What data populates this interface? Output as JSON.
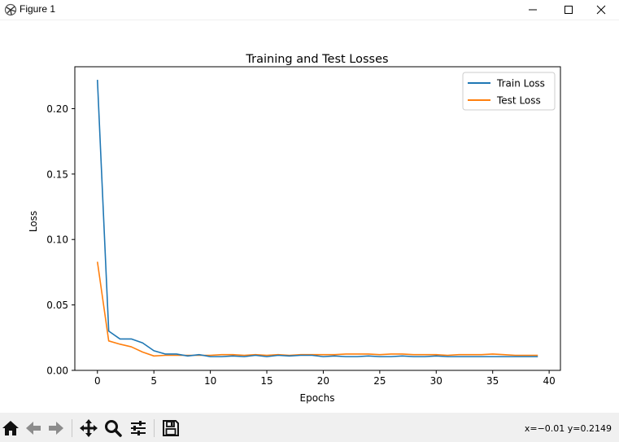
{
  "window": {
    "title": "Figure 1",
    "icons": [
      "matplotlib-icon",
      "minimize-icon",
      "maximize-icon",
      "close-icon"
    ]
  },
  "toolbar": {
    "icons": [
      "home-icon",
      "back-arrow-icon",
      "forward-arrow-icon",
      "pan-icon",
      "zoom-icon",
      "configure-subplots-icon",
      "save-icon"
    ],
    "coords": "x=−0.01 y=0.2149"
  },
  "colors": {
    "train": "#1f77b4",
    "test": "#ff7f0e"
  },
  "chart_data": {
    "type": "line",
    "title": "Training and Test Losses",
    "xlabel": "Epochs",
    "ylabel": "Loss",
    "xlim": [
      -2,
      41
    ],
    "ylim": [
      0,
      0.232
    ],
    "xticks": [
      0,
      5,
      10,
      15,
      20,
      25,
      30,
      35,
      40
    ],
    "xtick_labels": [
      "0",
      "5",
      "10",
      "15",
      "20",
      "25",
      "30",
      "35",
      "40"
    ],
    "yticks": [
      0.0,
      0.05,
      0.1,
      0.15,
      0.2
    ],
    "ytick_labels": [
      "0.00",
      "0.05",
      "0.10",
      "0.15",
      "0.20"
    ],
    "grid": false,
    "legend_position": "top-right",
    "x": [
      0,
      1,
      2,
      3,
      4,
      5,
      6,
      7,
      8,
      9,
      10,
      11,
      12,
      13,
      14,
      15,
      16,
      17,
      18,
      19,
      20,
      21,
      22,
      23,
      24,
      25,
      26,
      27,
      28,
      29,
      30,
      31,
      32,
      33,
      34,
      35,
      36,
      37,
      38,
      39
    ],
    "series": [
      {
        "name": "Train Loss",
        "values": [
          0.222,
          0.03,
          0.024,
          0.024,
          0.021,
          0.015,
          0.0125,
          0.0125,
          0.011,
          0.012,
          0.0105,
          0.0105,
          0.011,
          0.0105,
          0.0115,
          0.0105,
          0.0115,
          0.011,
          0.0115,
          0.0115,
          0.0105,
          0.011,
          0.0105,
          0.0105,
          0.011,
          0.0105,
          0.0105,
          0.011,
          0.0105,
          0.0105,
          0.011,
          0.0105,
          0.0105,
          0.0105,
          0.0105,
          0.0105,
          0.0105,
          0.0105,
          0.0105,
          0.0105
        ]
      },
      {
        "name": "Test Loss",
        "values": [
          0.083,
          0.0225,
          0.02,
          0.018,
          0.014,
          0.011,
          0.0115,
          0.0115,
          0.0115,
          0.0115,
          0.0115,
          0.012,
          0.012,
          0.0115,
          0.012,
          0.0115,
          0.012,
          0.0115,
          0.012,
          0.012,
          0.012,
          0.012,
          0.0125,
          0.0125,
          0.0125,
          0.012,
          0.0125,
          0.0125,
          0.012,
          0.012,
          0.012,
          0.0115,
          0.012,
          0.012,
          0.012,
          0.0125,
          0.012,
          0.0115,
          0.0115,
          0.0115
        ]
      }
    ]
  }
}
